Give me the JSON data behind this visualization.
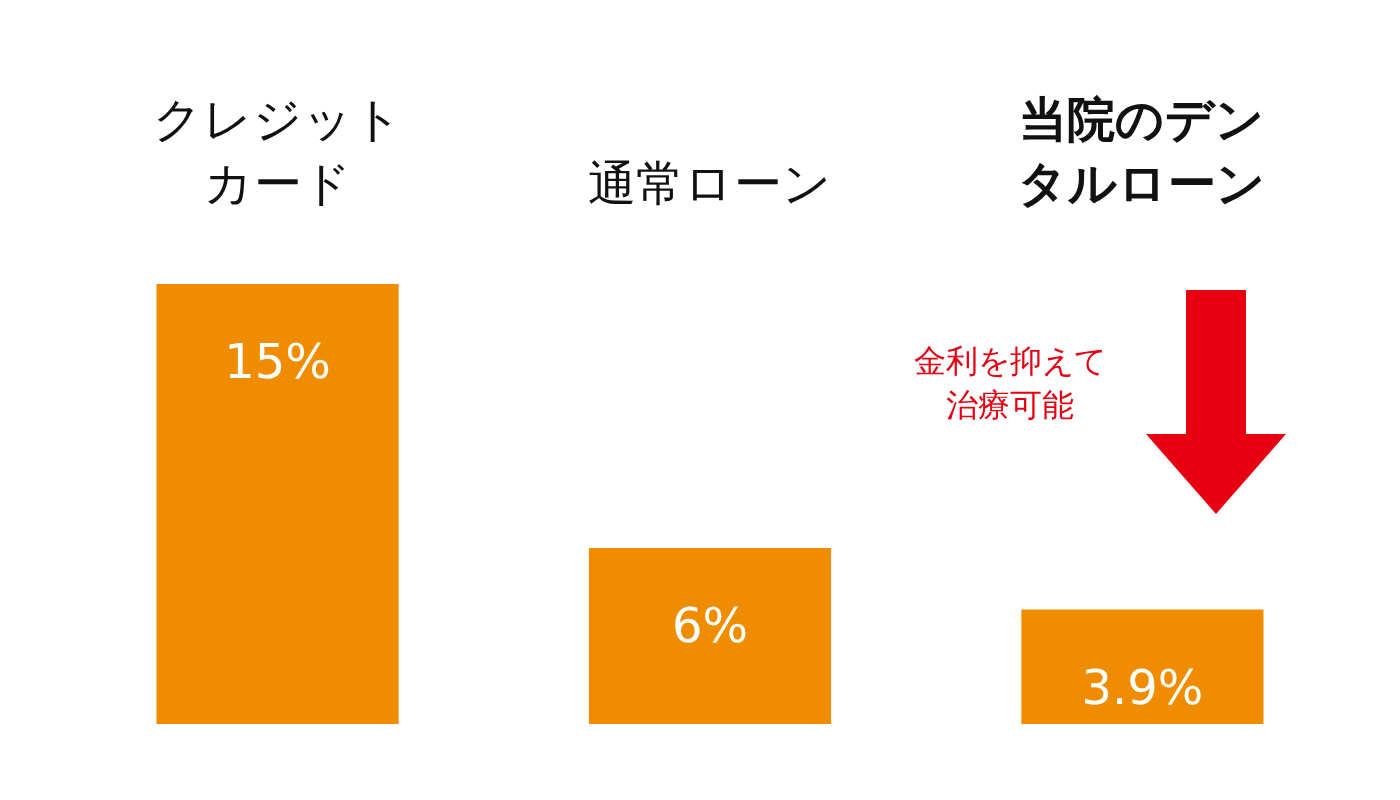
{
  "chart_data": {
    "type": "bar",
    "categories": [
      "クレジットカード",
      "通常ローン",
      "当院のデンタルローン"
    ],
    "values": [
      15,
      6,
      3.9
    ],
    "value_labels": [
      "15%",
      "6%",
      "3.9%"
    ],
    "color": "#f08c00",
    "annotations": [
      "金利を抑えて治療可能"
    ]
  }
}
